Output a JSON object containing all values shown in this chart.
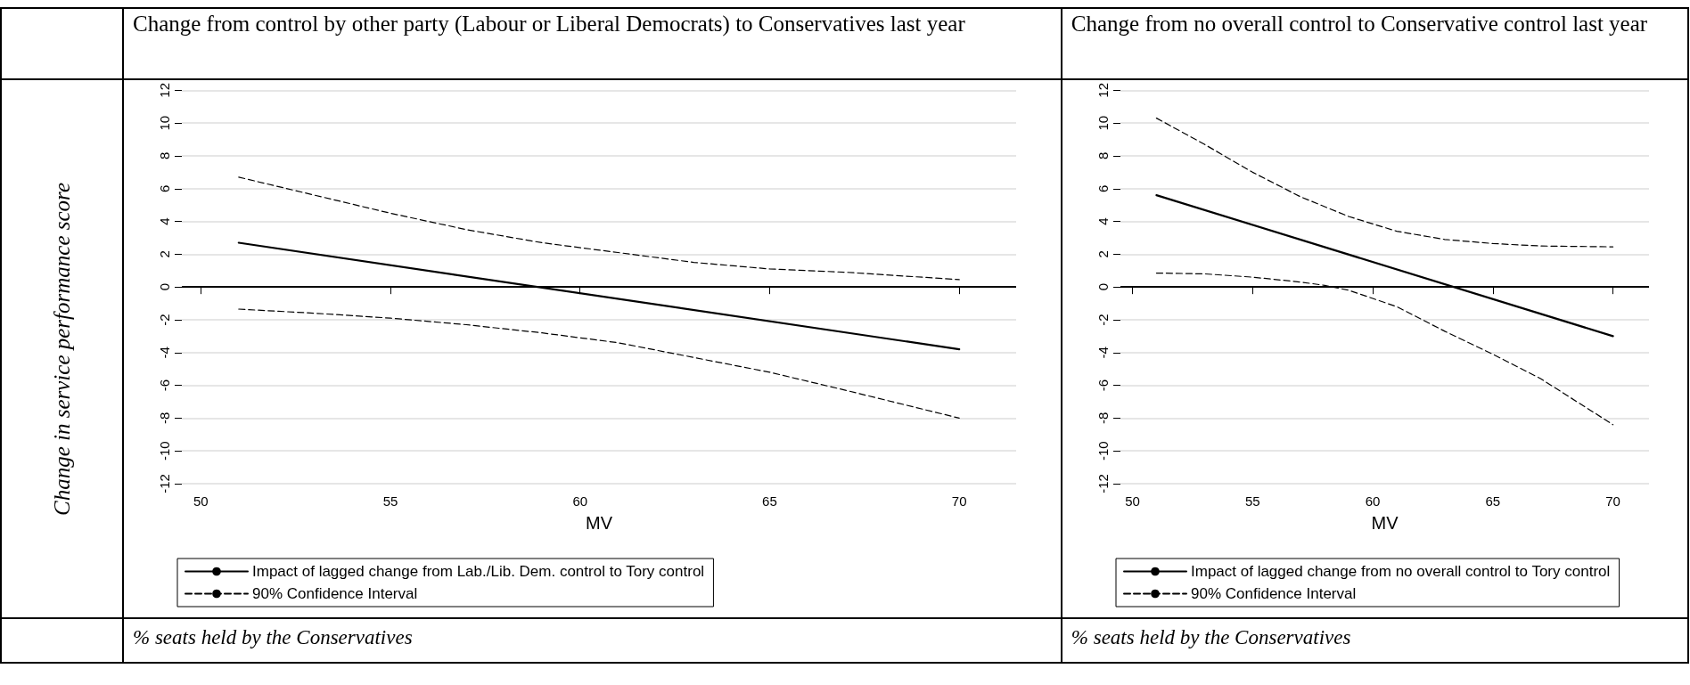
{
  "chart_data": [
    {
      "type": "line",
      "title": "Change from control by other party (Labour or Liberal Democrats) to Conservatives last year",
      "xlabel": "MV",
      "ylabel": "Change in service performance score",
      "annotations": [
        "% seats held by the Conservatives"
      ],
      "xlim": [
        49.5,
        71.5
      ],
      "xticks": [
        50,
        55,
        60,
        65,
        70
      ],
      "ylim": [
        -12,
        12
      ],
      "yticks": [
        -12,
        -10,
        -8,
        -6,
        -4,
        -2,
        0,
        2,
        4,
        6,
        8,
        10,
        12
      ],
      "grid": "y",
      "legend": "bottom",
      "marker": "none",
      "ref_lines": [
        {
          "axis": "y",
          "value": 0,
          "color": "#000000",
          "line_style": "solid"
        }
      ],
      "series": [
        {
          "name": "Impact of lagged change from Lab./Lib. Dem. control to Tory control",
          "color": "#000000",
          "line_style": "solid",
          "x": [
            51,
            70
          ],
          "values": [
            2.7,
            -3.8
          ]
        },
        {
          "name": "90% Confidence Interval",
          "color": "#000000",
          "line_style": "dashed",
          "x": [
            51,
            53,
            55,
            57,
            59,
            61,
            63,
            65,
            67,
            70
          ],
          "values": [
            6.7,
            5.6,
            4.5,
            3.5,
            2.7,
            2.1,
            1.5,
            1.1,
            0.9,
            0.45
          ]
        },
        {
          "color": "#000000",
          "line_style": "dashed",
          "x": [
            51,
            53,
            55,
            57,
            59,
            61,
            63,
            65,
            67,
            70
          ],
          "values": [
            -1.35,
            -1.6,
            -1.9,
            -2.3,
            -2.8,
            -3.4,
            -4.3,
            -5.2,
            -6.3,
            -8.0
          ]
        }
      ]
    },
    {
      "type": "line",
      "title": "Change from no overall control to Conservative control last year",
      "xlabel": "MV",
      "annotations": [
        "% seats held by the Conservatives"
      ],
      "xlim": [
        49.5,
        71.5
      ],
      "xticks": [
        50,
        55,
        60,
        65,
        70
      ],
      "ylim": [
        -12,
        12
      ],
      "yticks": [
        -12,
        -10,
        -8,
        -6,
        -4,
        -2,
        0,
        2,
        4,
        6,
        8,
        10,
        12
      ],
      "grid": "y",
      "legend": "bottom",
      "marker": "none",
      "ref_lines": [
        {
          "axis": "y",
          "value": 0,
          "color": "#000000",
          "line_style": "solid"
        }
      ],
      "series": [
        {
          "name": "Impact of lagged change from no overall control to Tory control",
          "color": "#000000",
          "line_style": "solid",
          "x": [
            51,
            70
          ],
          "values": [
            5.6,
            -3.0
          ]
        },
        {
          "name": "90% Confidence Interval",
          "color": "#000000",
          "line_style": "dashed",
          "x": [
            51,
            53,
            55,
            57,
            59,
            61,
            63,
            65,
            67,
            70
          ],
          "values": [
            10.3,
            8.7,
            7.0,
            5.5,
            4.3,
            3.4,
            2.9,
            2.65,
            2.5,
            2.45
          ]
        },
        {
          "color": "#000000",
          "line_style": "dashed",
          "x": [
            51,
            53,
            55,
            57,
            58,
            59,
            60,
            61,
            63,
            65,
            67,
            70
          ],
          "values": [
            0.85,
            0.8,
            0.6,
            0.3,
            0.1,
            -0.2,
            -0.7,
            -1.2,
            -2.7,
            -4.1,
            -5.6,
            -8.4
          ]
        }
      ]
    }
  ]
}
